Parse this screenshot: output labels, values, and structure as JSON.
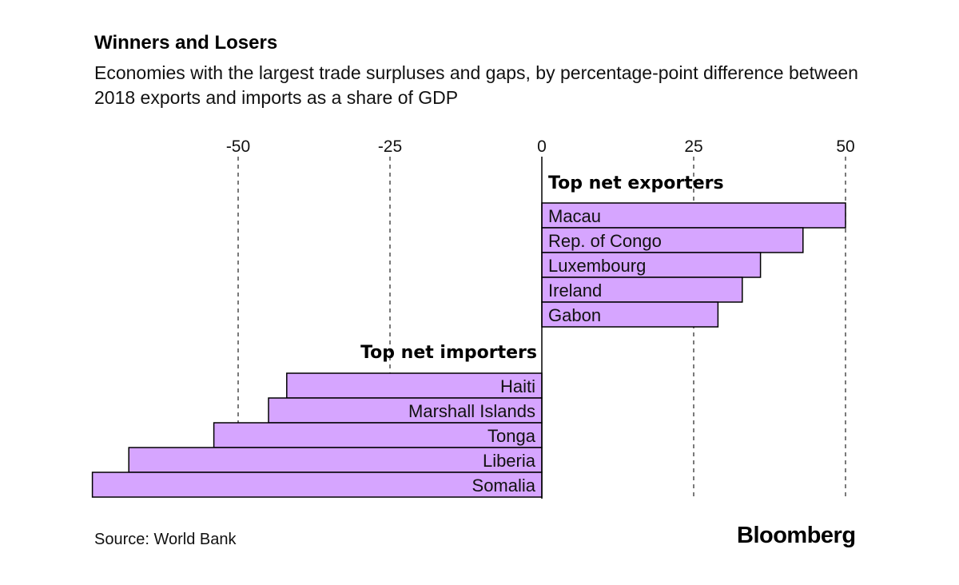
{
  "chart_data": {
    "type": "bar",
    "orientation": "horizontal",
    "title": "Winners and Losers",
    "subtitle": "Economies with the largest trade surpluses and gaps, by percentage-point difference between 2018 exports and imports as a share of GDP",
    "xlim": [
      -74,
      54
    ],
    "xticks": [
      -50,
      -25,
      0,
      25,
      50
    ],
    "tick_labels": [
      "-50",
      "-25",
      "0",
      "25",
      "50"
    ],
    "grid": "dashed vertical",
    "bar_color": "#d6a5ff",
    "groups": [
      {
        "label": "Top net exporters",
        "categories": [
          "Macau",
          "Rep. of Congo",
          "Luxembourg",
          "Ireland",
          "Gabon"
        ],
        "values": [
          50,
          43,
          36,
          33,
          29
        ]
      },
      {
        "label": "Top net importers",
        "categories": [
          "Haiti",
          "Marshall Islands",
          "Tonga",
          "Liberia",
          "Somalia"
        ],
        "values": [
          -42,
          -45,
          -54,
          -68,
          -74
        ]
      }
    ]
  },
  "footer": {
    "source": "Source: World Bank",
    "brand": "Bloomberg"
  }
}
